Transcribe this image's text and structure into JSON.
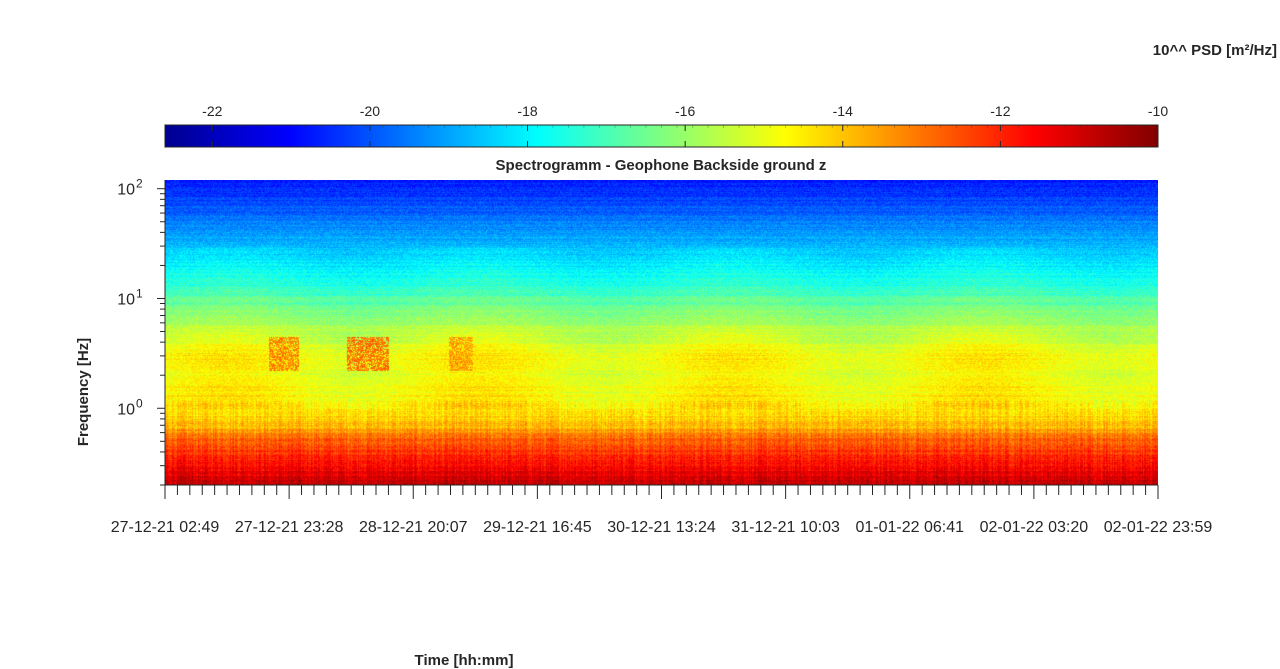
{
  "chart_data": {
    "type": "heatmap",
    "title": "Spectrogramm - Geophone Backside ground z",
    "xlabel": "Time [hh:mm]",
    "ylabel": "Frequency [Hz]",
    "y_scale": "log",
    "ylim": [
      0.2,
      120
    ],
    "y_ticks": [
      {
        "value": 1,
        "label": "10",
        "exp": "0"
      },
      {
        "value": 10,
        "label": "10",
        "exp": "1"
      },
      {
        "value": 100,
        "label": "10",
        "exp": "2"
      }
    ],
    "x_tick_labels": [
      "27-12-21 02:49",
      "27-12-21 23:28",
      "28-12-21 20:07",
      "29-12-21 16:45",
      "30-12-21 13:24",
      "31-12-21 10:03",
      "01-01-22 06:41",
      "02-01-22 03:20",
      "02-01-22 23:59"
    ],
    "colorbar": {
      "label": "10^^ PSD [m²/Hz]",
      "range": [
        -22.6,
        -10
      ],
      "ticks": [
        -22,
        -20,
        -18,
        -16,
        -14,
        -12,
        -10
      ],
      "colormap": "jet"
    },
    "psd_profile_log10": [
      {
        "f": 0.2,
        "psd": -10.8
      },
      {
        "f": 0.3,
        "psd": -11.6
      },
      {
        "f": 0.5,
        "psd": -12.6
      },
      {
        "f": 0.7,
        "psd": -13.9
      },
      {
        "f": 1.0,
        "psd": -14.5
      },
      {
        "f": 2.0,
        "psd": -14.9
      },
      {
        "f": 3.0,
        "psd": -14.7
      },
      {
        "f": 5.0,
        "psd": -15.5
      },
      {
        "f": 10.0,
        "psd": -16.8
      },
      {
        "f": 15.0,
        "psd": -17.6
      },
      {
        "f": 30.0,
        "psd": -18.6
      },
      {
        "f": 60.0,
        "psd": -19.8
      },
      {
        "f": 120.0,
        "psd": -20.8
      }
    ],
    "events": [
      {
        "t_start": "27-12-21 20:00",
        "t_end": "28-12-21 01:00",
        "f_low": 2.2,
        "f_high": 4.5,
        "psd": -13.2
      },
      {
        "t_start": "28-12-21 09:00",
        "t_end": "28-12-21 16:00",
        "f_low": 2.2,
        "f_high": 4.5,
        "psd": -13.0
      },
      {
        "t_start": "29-12-21 02:00",
        "t_end": "29-12-21 06:00",
        "f_low": 2.2,
        "f_high": 4.5,
        "psd": -13.5
      }
    ]
  }
}
